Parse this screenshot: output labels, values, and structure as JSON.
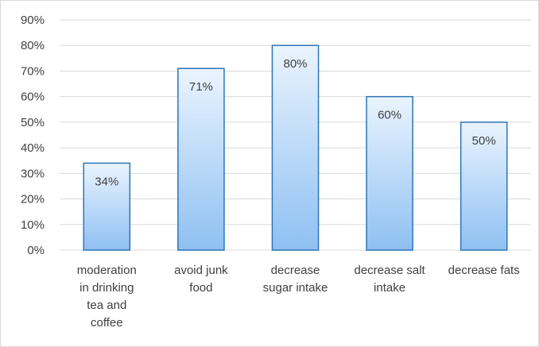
{
  "chart_data": {
    "type": "bar",
    "title": "",
    "xlabel": "",
    "ylabel": "",
    "categories": [
      [
        "moderation",
        "in drinking",
        "tea and",
        "coffee"
      ],
      [
        "avoid junk",
        "food"
      ],
      [
        "decrease",
        "sugar intake"
      ],
      [
        "decrease salt",
        "intake"
      ],
      [
        "decrease fats"
      ]
    ],
    "values": [
      34,
      71,
      80,
      60,
      50
    ],
    "data_labels": [
      "34%",
      "71%",
      "80%",
      "60%",
      "50%"
    ],
    "ylim": [
      0,
      90
    ],
    "yticks": [
      "0%",
      "10%",
      "20%",
      "30%",
      "40%",
      "50%",
      "60%",
      "70%",
      "80%",
      "90%"
    ],
    "grid": true,
    "legend": "none",
    "colors": {
      "bar_top": "#eaf4ff",
      "bar_bottom": "#8fc0f2",
      "bar_border": "#2e75b6",
      "grid": "#d9d9d9",
      "text": "#404040"
    }
  }
}
